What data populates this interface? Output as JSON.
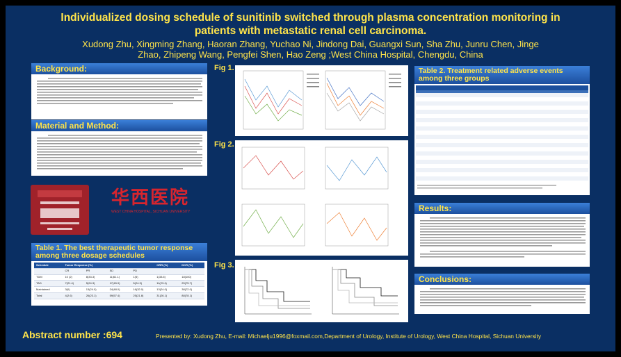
{
  "title_line1": "Individualized dosing schedule of sunitinib switched through plasma concentration monitoring in",
  "title_line2": "patients with metastatic renal cell carcinoma.",
  "authors_line1": "Xudong Zhu, Xingming Zhang, Haoran Zhang, Yuchao Ni, Jindong Dai, Guangxi Sun, Sha Zhu, Junru Chen, Jinge",
  "authors_line2": "Zhao, Zhipeng Wang, Pengfei Shen, Hao Zeng ;West China Hospital, Chengdu, China",
  "sections": {
    "background": {
      "heading": "Background:"
    },
    "methods": {
      "heading": "Material and Method:"
    },
    "table1": {
      "heading": "Table 1. The best therapeutic tumor response among three dosage schedules"
    },
    "table2": {
      "heading": "Table 2. Treatment related adverse events among three groups"
    },
    "results": {
      "heading": "Results:"
    },
    "conclusions": {
      "heading": "Conclusions:"
    }
  },
  "figures": {
    "fig1": "Fig 1.",
    "fig2": "Fig 2.",
    "fig3": "Fig 3."
  },
  "logo": {
    "chinese_name": "华西医院",
    "english_name": "WEST CHINA HOSPITAL, SICHUAN UNIVERSITY"
  },
  "table1": {
    "columns": [
      "Schedule",
      "Tumor Response (%)",
      "",
      "",
      "",
      "ORR (%)",
      "DCR (%)"
    ],
    "subcolumns": [
      "",
      "CR",
      "PR",
      "SD",
      "PD",
      "",
      ""
    ],
    "rows": [
      [
        "TDM",
        "10 (2)",
        "8(33.3)",
        "11(61.1)",
        "1(5)",
        "1(33.6)",
        "18(100)"
      ],
      [
        "TAD",
        "7(21.4)",
        "5(24.3)",
        "17(45.9)",
        "5(24.3)",
        "11(23.4)",
        "25(75.7)"
      ],
      [
        "Maintained",
        "3(0)",
        "13(24.0)",
        "24(48.0)",
        "16(32.0)",
        "13(24.0)",
        "38(72.0)"
      ],
      [
        "Total",
        "4(2.6)",
        "26(23.1)",
        "59(57.4)",
        "25(21.8)",
        "31(26.1)",
        "88(78.1)"
      ]
    ]
  },
  "abstract_number": "Abstract number :694",
  "presenter": "Presented by: Xudong Zhu, E-mail: Michaelju1996@foxmail.com,Department of Urology, Institute of Urology, West China Hospital, Sichuan University"
}
